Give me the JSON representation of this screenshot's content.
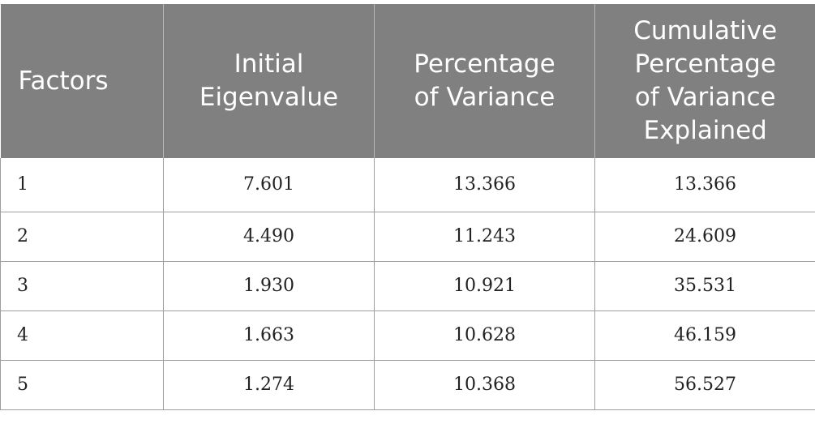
{
  "table": {
    "headers": [
      [
        "Factors"
      ],
      [
        "Initial",
        "Eigenvalue"
      ],
      [
        "Percentage",
        "of Variance"
      ],
      [
        "Cumulative",
        "Percentage",
        "of Variance",
        "Explained"
      ]
    ],
    "rows": [
      [
        "1",
        "7.601",
        "13.366",
        "13.366"
      ],
      [
        "2",
        "4.490",
        "11.243",
        "24.609"
      ],
      [
        "3",
        "1.930",
        "10.921",
        "35.531"
      ],
      [
        "4",
        "1.663",
        "10.628",
        "46.159"
      ],
      [
        "5",
        "1.274",
        "10.368",
        "56.527"
      ]
    ]
  },
  "colors": {
    "header_bg": "#808080",
    "header_text": "#ffffff",
    "grid": "#9e9e9e"
  }
}
